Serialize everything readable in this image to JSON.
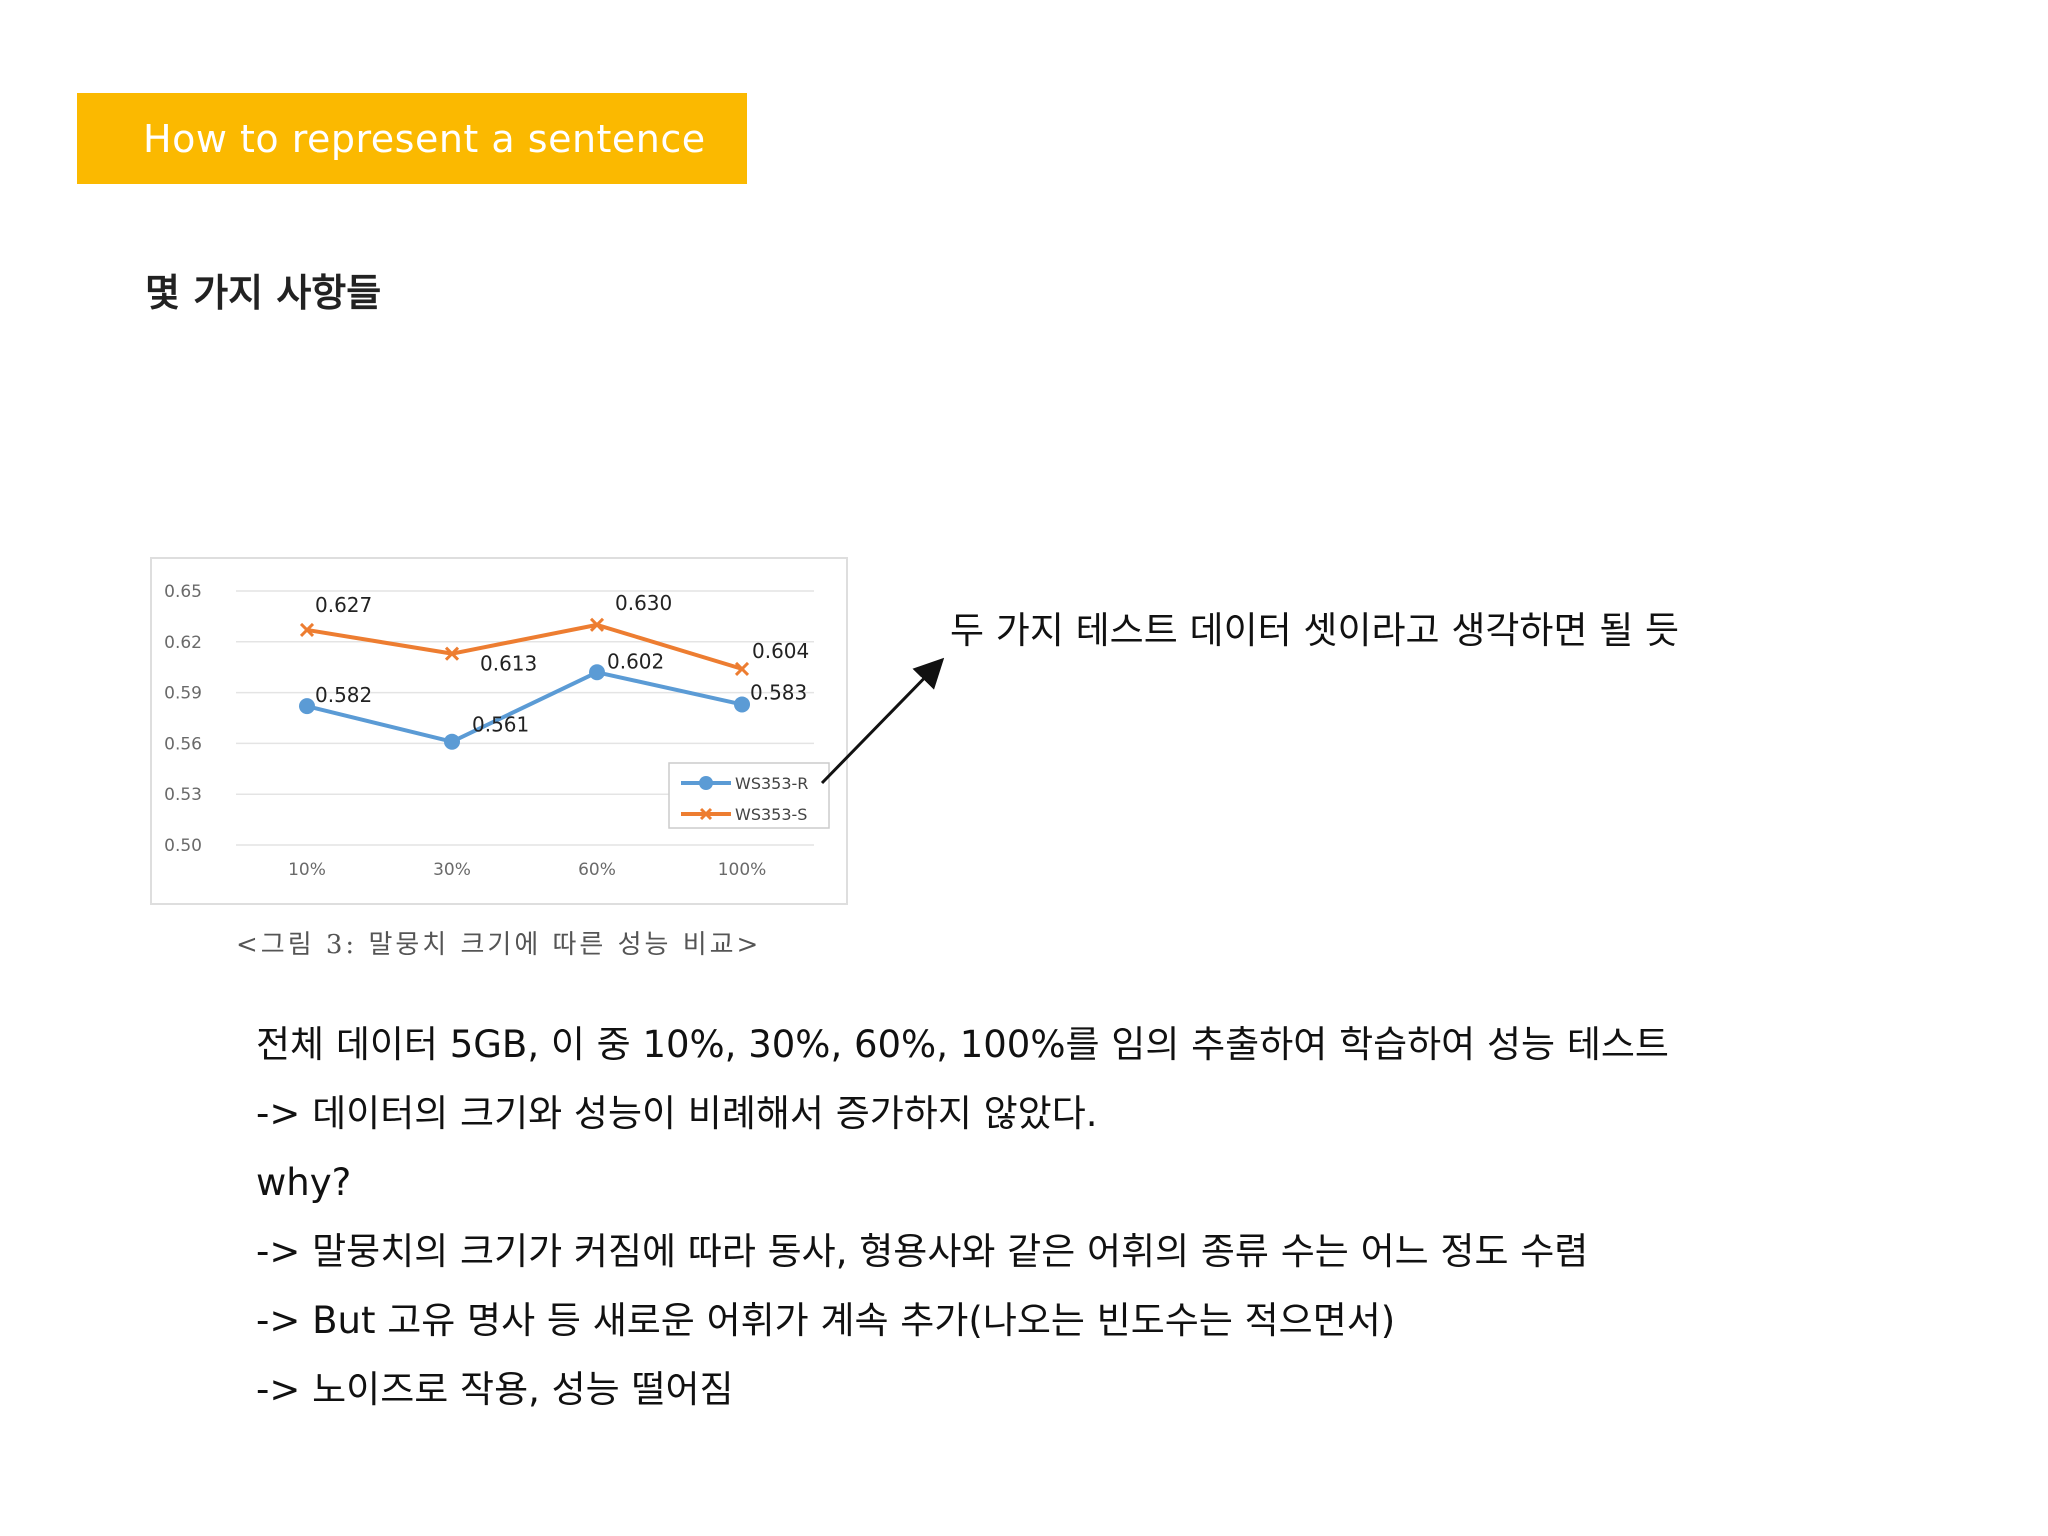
{
  "slide": {
    "banner_title": "How to represent a sentence",
    "subtitle": "몇 가지 사항들",
    "annotation": "두 가지 테스트 데이터 셋이라고 생각하면 될 듯",
    "caption": "<그림 3: 말뭉치 크기에 따른 성능 비교>",
    "body_lines": [
      "전체 데이터 5GB, 이 중 10%, 30%, 60%, 100%를 임의 추출하여 학습하여 성능 테스트",
      "-> 데이터의 크기와 성능이 비례해서 증가하지 않았다.",
      "why?",
      "-> 말뭉치의 크기가 커짐에 따라 동사, 형용사와 같은 어휘의 종류 수는 어느 정도 수렴",
      "-> But 고유 명사 등 새로운 어휘가 계속 추가(나오는 빈도수는 적으면서)",
      "-> 노이즈로 작용, 성능 떨어짐"
    ]
  },
  "colors": {
    "banner": "#FBB900",
    "series_r": "#5B9BD5",
    "series_s": "#ED7D31"
  },
  "chart_data": {
    "type": "line",
    "categories": [
      "10%",
      "30%",
      "60%",
      "100%"
    ],
    "y_ticks": [
      "0.65",
      "0.62",
      "0.59",
      "0.56",
      "0.53",
      "0.50"
    ],
    "ylim": [
      0.5,
      0.65
    ],
    "grid": true,
    "legend_position": "bottom-right",
    "series": [
      {
        "name": "WS353-R",
        "values": [
          0.582,
          0.561,
          0.602,
          0.583
        ],
        "labels": [
          "0.582",
          "0.561",
          "0.602",
          "0.583"
        ],
        "color": "#5B9BD5",
        "marker": "circle"
      },
      {
        "name": "WS353-S",
        "values": [
          0.627,
          0.613,
          0.63,
          0.604
        ],
        "labels": [
          "0.627",
          "0.613",
          "0.630",
          "0.604"
        ],
        "color": "#ED7D31",
        "marker": "x"
      }
    ]
  }
}
